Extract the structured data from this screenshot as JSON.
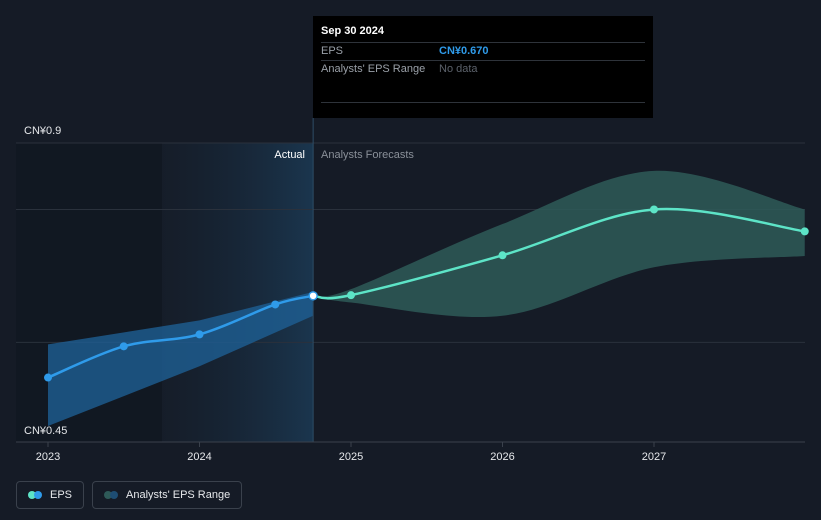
{
  "colors": {
    "background": "#151b26",
    "eps_actual": "#2f9bea",
    "eps_forecast": "#5de4c7",
    "forecast_band": "#2e5a58",
    "actual_band": "#1e5f94",
    "tooltip_bg": "#000000"
  },
  "tooltip": {
    "date": "Sep 30 2024",
    "rows": [
      {
        "label": "EPS",
        "value": "CN¥0.670"
      },
      {
        "label": "Analysts' EPS Range",
        "value": "No data"
      }
    ]
  },
  "sections": {
    "actual": "Actual",
    "forecast": "Analysts Forecasts"
  },
  "legend": {
    "eps": "EPS",
    "range": "Analysts' EPS Range"
  },
  "chart_data": {
    "type": "line",
    "y_axis": {
      "top_label": "CN¥0.9",
      "bottom_label": "CN¥0.45",
      "ylim": [
        0.45,
        0.9
      ]
    },
    "x_ticks": [
      {
        "label": "2023",
        "x": 2023.0
      },
      {
        "label": "2024",
        "x": 2024.0
      },
      {
        "label": "2025",
        "x": 2025.0
      },
      {
        "label": "2026",
        "x": 2026.0
      },
      {
        "label": "2027",
        "x": 2027.0
      }
    ],
    "x_range": [
      2022.8,
      2027.995
    ],
    "series": [
      {
        "name": "EPS",
        "kind": "actual",
        "points": [
          {
            "x": 2023.0,
            "y": 0.547
          },
          {
            "x": 2023.5,
            "y": 0.594
          },
          {
            "x": 2024.0,
            "y": 0.612
          },
          {
            "x": 2024.5,
            "y": 0.657
          },
          {
            "x": 2024.75,
            "y": 0.67
          }
        ]
      },
      {
        "name": "EPS",
        "kind": "forecast",
        "points": [
          {
            "x": 2024.75,
            "y": 0.67
          },
          {
            "x": 2025.0,
            "y": 0.671
          },
          {
            "x": 2026.0,
            "y": 0.731
          },
          {
            "x": 2027.0,
            "y": 0.8
          },
          {
            "x": 2027.995,
            "y": 0.767
          }
        ]
      }
    ],
    "ranges": [
      {
        "name": "Analysts' EPS Range",
        "kind": "actual",
        "upper": [
          {
            "x": 2023.0,
            "y": 0.597
          },
          {
            "x": 2024.0,
            "y": 0.633
          },
          {
            "x": 2024.75,
            "y": 0.676
          }
        ],
        "lower": [
          {
            "x": 2023.0,
            "y": 0.474
          },
          {
            "x": 2024.0,
            "y": 0.564
          },
          {
            "x": 2024.75,
            "y": 0.64
          }
        ]
      },
      {
        "name": "Analysts' EPS Range",
        "kind": "forecast",
        "upper": [
          {
            "x": 2024.75,
            "y": 0.67
          },
          {
            "x": 2025.0,
            "y": 0.68
          },
          {
            "x": 2026.0,
            "y": 0.778
          },
          {
            "x": 2027.0,
            "y": 0.858
          },
          {
            "x": 2027.995,
            "y": 0.8
          }
        ],
        "lower": [
          {
            "x": 2024.75,
            "y": 0.67
          },
          {
            "x": 2025.0,
            "y": 0.66
          },
          {
            "x": 2026.0,
            "y": 0.64
          },
          {
            "x": 2027.0,
            "y": 0.713
          },
          {
            "x": 2027.995,
            "y": 0.73
          }
        ]
      }
    ],
    "highlight": {
      "x": 2024.75,
      "y": 0.67
    },
    "gridlines": [
      0.9,
      0.8,
      0.6
    ],
    "legend_position": "bottom-left",
    "grid": true
  }
}
